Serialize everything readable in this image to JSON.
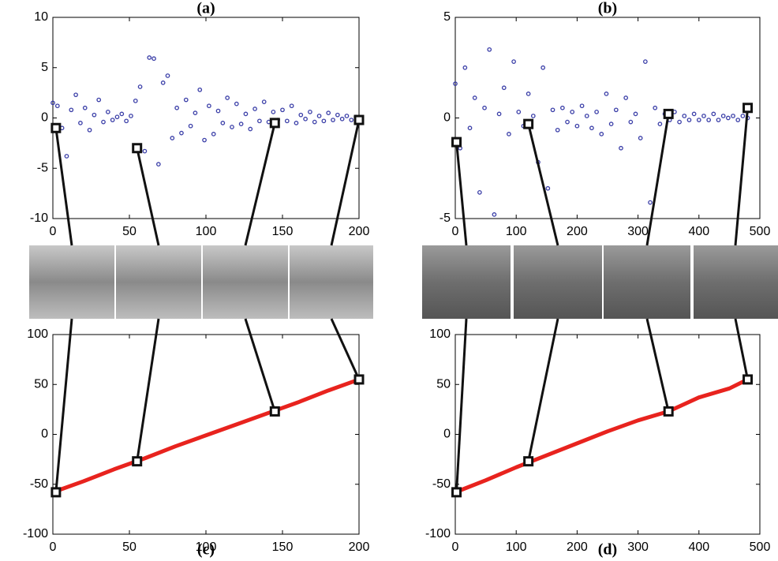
{
  "chart_data": [
    {
      "type": "scatter",
      "title": "(a)",
      "color": "#3b3fa8",
      "x": [
        0,
        3,
        6,
        9,
        12,
        15,
        18,
        21,
        24,
        27,
        30,
        33,
        36,
        39,
        42,
        45,
        48,
        51,
        54,
        57,
        60,
        63,
        66,
        69,
        72,
        75,
        78,
        81,
        84,
        87,
        90,
        93,
        96,
        99,
        102,
        105,
        108,
        111,
        114,
        117,
        120,
        123,
        126,
        129,
        132,
        135,
        138,
        141,
        144,
        147,
        150,
        153,
        156,
        159,
        162,
        165,
        168,
        171,
        174,
        177,
        180,
        183,
        186,
        189,
        192,
        195,
        198
      ],
      "values": [
        1.5,
        1.2,
        -1.0,
        -3.8,
        0.8,
        2.3,
        -0.5,
        1.0,
        -1.2,
        0.3,
        1.8,
        -0.4,
        0.6,
        -0.2,
        0.1,
        0.4,
        -0.3,
        0.2,
        1.7,
        3.1,
        -3.3,
        6.0,
        5.9,
        -4.6,
        3.5,
        4.2,
        -2.0,
        1.0,
        -1.5,
        1.8,
        -0.8,
        0.5,
        2.8,
        -2.2,
        1.2,
        -1.6,
        0.7,
        -0.5,
        2.0,
        -0.9,
        1.4,
        -0.6,
        0.4,
        -1.1,
        0.9,
        -0.3,
        1.6,
        -0.4,
        0.6,
        -0.2,
        0.8,
        -0.3,
        1.2,
        -0.5,
        0.3,
        -0.1,
        0.6,
        -0.4,
        0.2,
        -0.3,
        0.5,
        -0.2,
        0.3,
        -0.1,
        0.2,
        -0.2,
        0.1
      ],
      "markers": {
        "x": [
          2,
          55,
          145,
          200
        ],
        "values": [
          -1,
          -3,
          -0.5,
          -0.2
        ]
      },
      "xlim": [
        0,
        200
      ],
      "ylim": [
        -10,
        10
      ],
      "xticks": [
        0,
        50,
        100,
        150,
        200
      ],
      "yticks": [
        -10,
        -5,
        0,
        5,
        10
      ]
    },
    {
      "type": "scatter",
      "title": "(b)",
      "color": "#3b3fa8",
      "x": [
        0,
        8,
        16,
        24,
        32,
        40,
        48,
        56,
        64,
        72,
        80,
        88,
        96,
        104,
        112,
        120,
        128,
        136,
        144,
        152,
        160,
        168,
        176,
        184,
        192,
        200,
        208,
        216,
        224,
        232,
        240,
        248,
        256,
        264,
        272,
        280,
        288,
        296,
        304,
        312,
        320,
        328,
        336,
        344,
        352,
        360,
        368,
        376,
        384,
        392,
        400,
        408,
        416,
        424,
        432,
        440,
        448,
        456,
        464,
        472,
        480
      ],
      "values": [
        1.7,
        -1.5,
        2.5,
        -0.5,
        1.0,
        -3.7,
        0.5,
        3.4,
        -4.8,
        0.2,
        1.5,
        -0.8,
        2.8,
        0.3,
        -0.4,
        1.2,
        0.1,
        -2.2,
        2.5,
        -3.5,
        0.4,
        -0.6,
        0.5,
        -0.2,
        0.3,
        -0.4,
        0.6,
        0.1,
        -0.5,
        0.3,
        -0.8,
        1.2,
        -0.3,
        0.4,
        -1.5,
        1.0,
        -0.2,
        0.2,
        -1.0,
        2.8,
        -4.2,
        0.5,
        -0.3,
        0.2,
        -0.1,
        0.3,
        -0.2,
        0.1,
        -0.1,
        0.2,
        -0.1,
        0.1,
        -0.1,
        0.2,
        -0.1,
        0.1,
        0.0,
        0.1,
        -0.1,
        0.1,
        0.0
      ],
      "markers": {
        "x": [
          2,
          120,
          350,
          480
        ],
        "values": [
          -1.2,
          -0.3,
          0.2,
          0.5
        ]
      },
      "xlim": [
        0,
        500
      ],
      "ylim": [
        -5,
        5
      ],
      "xticks": [
        0,
        100,
        200,
        300,
        400,
        500
      ],
      "yticks": [
        -5,
        0,
        5
      ]
    },
    {
      "type": "line",
      "title": "(c)",
      "color": "#e8231e",
      "x": [
        0,
        20,
        40,
        60,
        80,
        100,
        120,
        140,
        160,
        180,
        200
      ],
      "values": [
        -58,
        -47,
        -35,
        -24,
        -12,
        -1,
        10,
        21,
        32,
        44,
        55
      ],
      "markers": {
        "x": [
          2,
          55,
          145,
          200
        ],
        "values": [
          -58,
          -27,
          23,
          55
        ]
      },
      "xlim": [
        0,
        200
      ],
      "ylim": [
        -100,
        100
      ],
      "xticks": [
        0,
        50,
        100,
        150,
        200
      ],
      "yticks": [
        -100,
        -50,
        0,
        50,
        100
      ]
    },
    {
      "type": "line",
      "title": "(d)",
      "color": "#e8231e",
      "x": [
        0,
        50,
        100,
        150,
        200,
        250,
        300,
        350,
        400,
        450,
        480
      ],
      "values": [
        -58,
        -46,
        -33,
        -21,
        -9,
        3,
        14,
        23,
        37,
        46,
        55
      ],
      "markers": {
        "x": [
          2,
          120,
          350,
          480
        ],
        "values": [
          -58,
          -27,
          23,
          55
        ]
      },
      "xlim": [
        0,
        500
      ],
      "ylim": [
        -100,
        100
      ],
      "xticks": [
        0,
        100,
        200,
        300,
        400,
        500
      ],
      "yticks": [
        -100,
        -50,
        0,
        50,
        100
      ]
    }
  ]
}
